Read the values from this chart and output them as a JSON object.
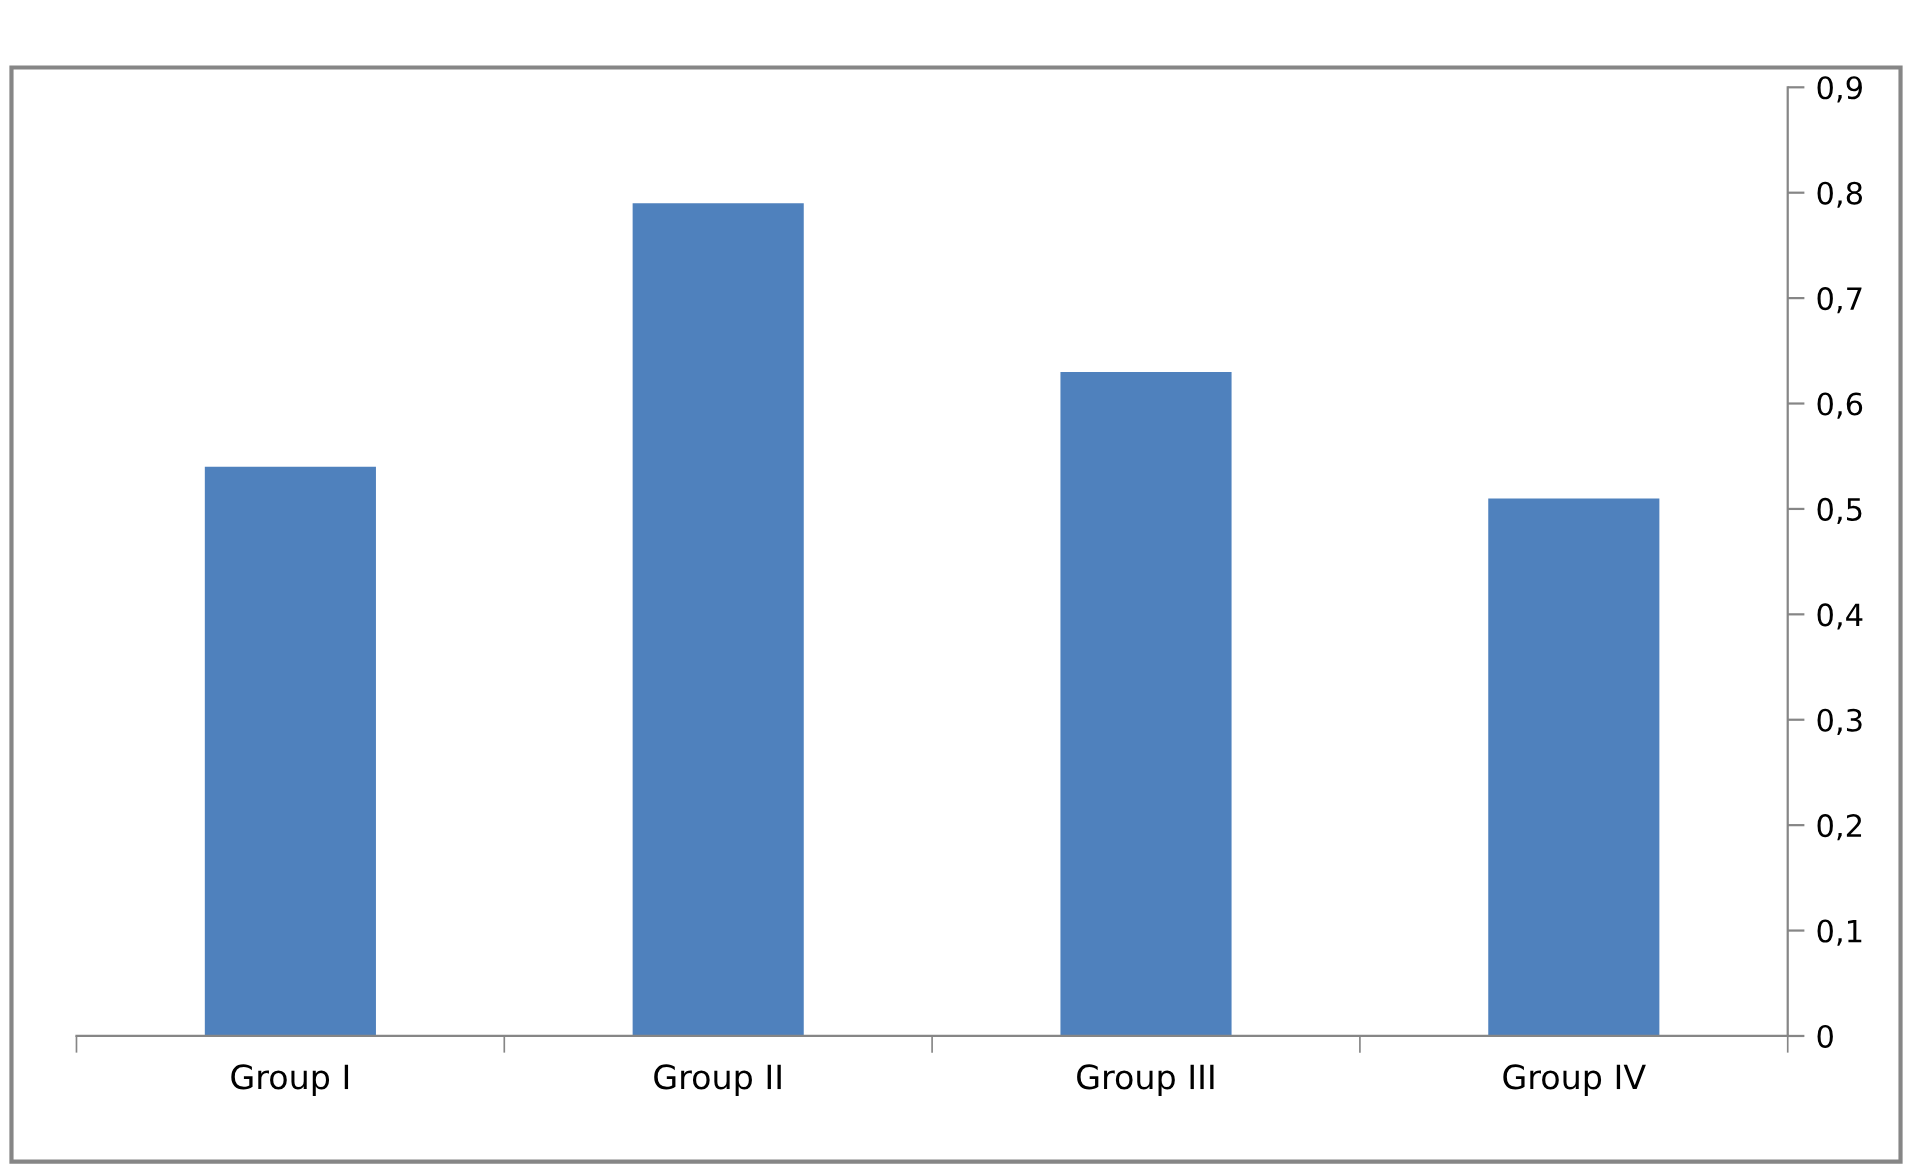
{
  "chart_data": {
    "type": "bar",
    "categories": [
      "Group I",
      "Group II",
      "Group III",
      "Group IV"
    ],
    "values": [
      0.54,
      0.79,
      0.63,
      0.51
    ],
    "color": "#4f81bd",
    "ylim": [
      0,
      0.9
    ],
    "yticks": [
      0,
      {
        "value": 0.1,
        "label": "0,1"
      },
      {
        "value": 0.2,
        "label": "0,2"
      },
      {
        "value": 0.3,
        "label": "0,3"
      },
      {
        "value": 0.4,
        "label": "0,4"
      },
      {
        "value": 0.5,
        "label": "0,5"
      },
      {
        "value": 0.6,
        "label": "0,6"
      },
      {
        "value": 0.7,
        "label": "0,7"
      },
      {
        "value": 0.8,
        "label": "0,8"
      },
      {
        "value": 0.9,
        "label": "0,9"
      }
    ],
    "grid": false,
    "legend": false
  }
}
